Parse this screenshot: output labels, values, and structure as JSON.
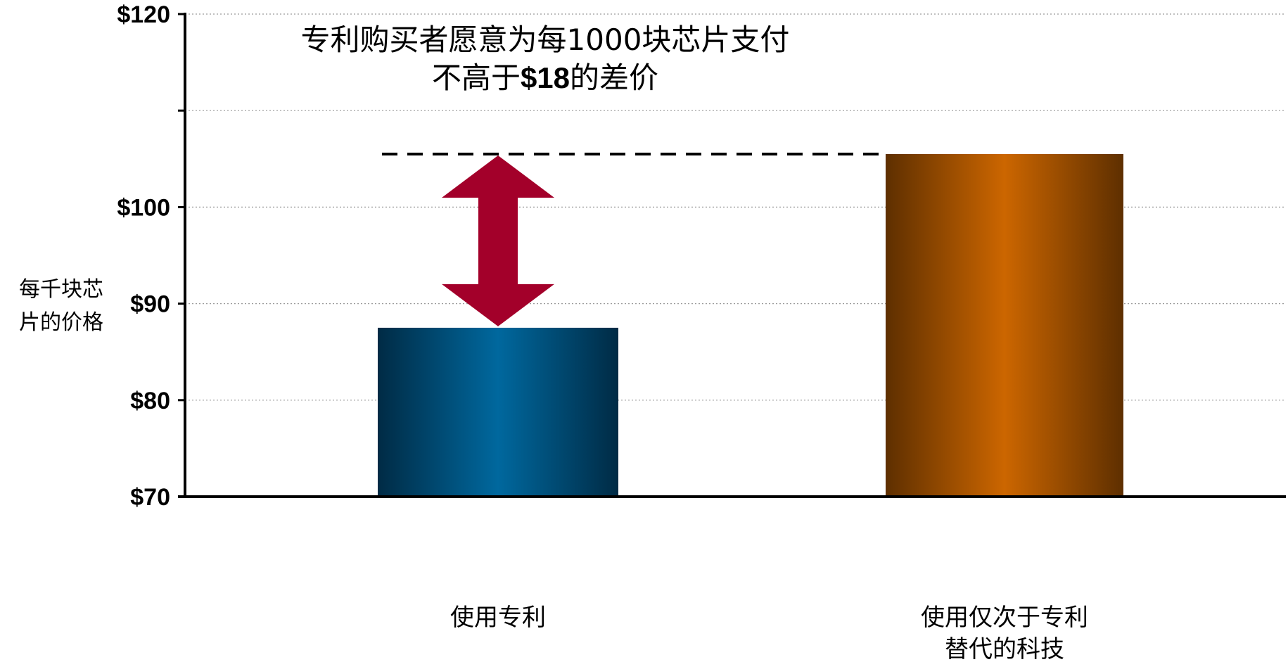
{
  "chart_data": {
    "type": "bar",
    "categories": [
      "使用专利",
      "使用仅次于专利替代的科技"
    ],
    "category_lines": [
      [
        "使用专利"
      ],
      [
        "使用仅次于专利",
        "替代的科技"
      ]
    ],
    "values": [
      87.5,
      105.5
    ],
    "ylabel_lines": [
      "每千块芯",
      "片的价格"
    ],
    "ylim": [
      70,
      120
    ],
    "ticks": [
      70,
      80,
      90,
      100,
      110,
      120
    ],
    "tick_labels": [
      "$70",
      "$80",
      "$90",
      "$100",
      "",
      "$120"
    ],
    "grid": true,
    "bar_colors": [
      "#00689e",
      "#cc6600"
    ],
    "bar_edge_colors": [
      "#002b45",
      "#5e2f00"
    ],
    "arrow_color": "#a3002a",
    "annotation": {
      "line1": "专利购买者愿意为每1000块芯片支付",
      "line2_pre": "不高于",
      "line2_bold": "$18",
      "line2_post": "的差价"
    }
  }
}
